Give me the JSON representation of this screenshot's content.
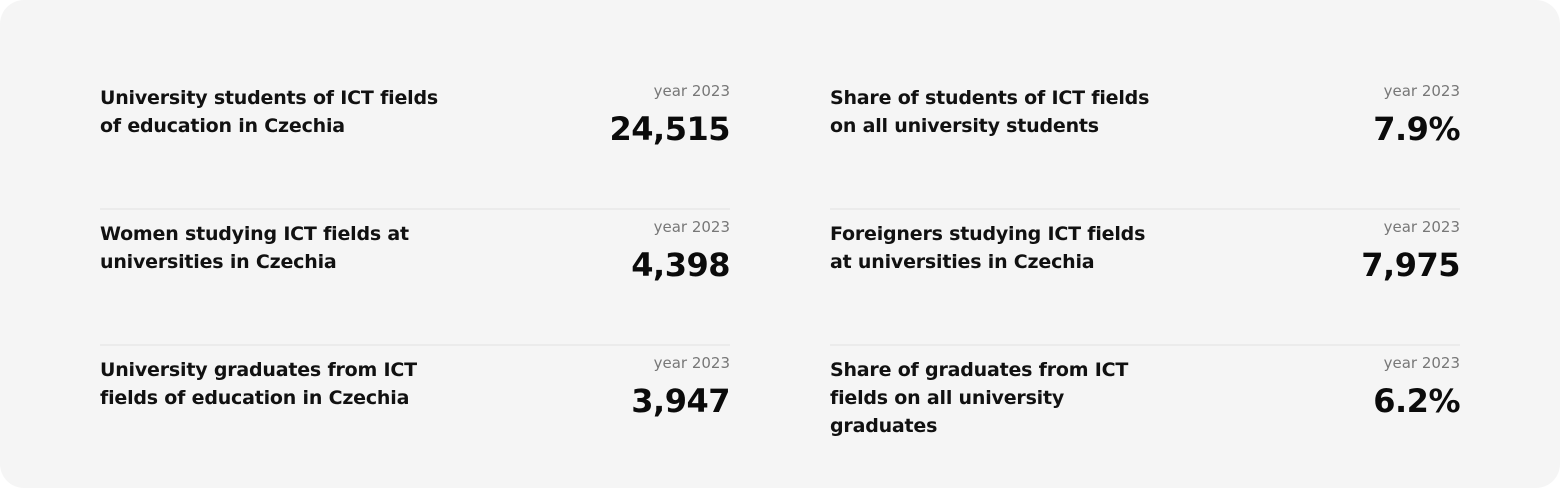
{
  "stats": [
    {
      "label": "University students of ICT fields of education in Czechia",
      "period": "year 2023",
      "value": "24,515"
    },
    {
      "label": "Share of students of ICT fields on all university students",
      "period": "year 2023",
      "value": "7.9%"
    },
    {
      "label": "Women studying ICT fields at universities in Czechia",
      "period": "year 2023",
      "value": "4,398"
    },
    {
      "label": "Foreigners studying ICT fields at universities in Czechia",
      "period": "year 2023",
      "value": "7,975"
    },
    {
      "label": "University graduates from ICT fields of education in Czechia",
      "period": "year 2023",
      "value": "3,947"
    },
    {
      "label": "Share of graduates from ICT fields on all university graduates",
      "period": "year 2023",
      "value": "6.2%"
    }
  ]
}
